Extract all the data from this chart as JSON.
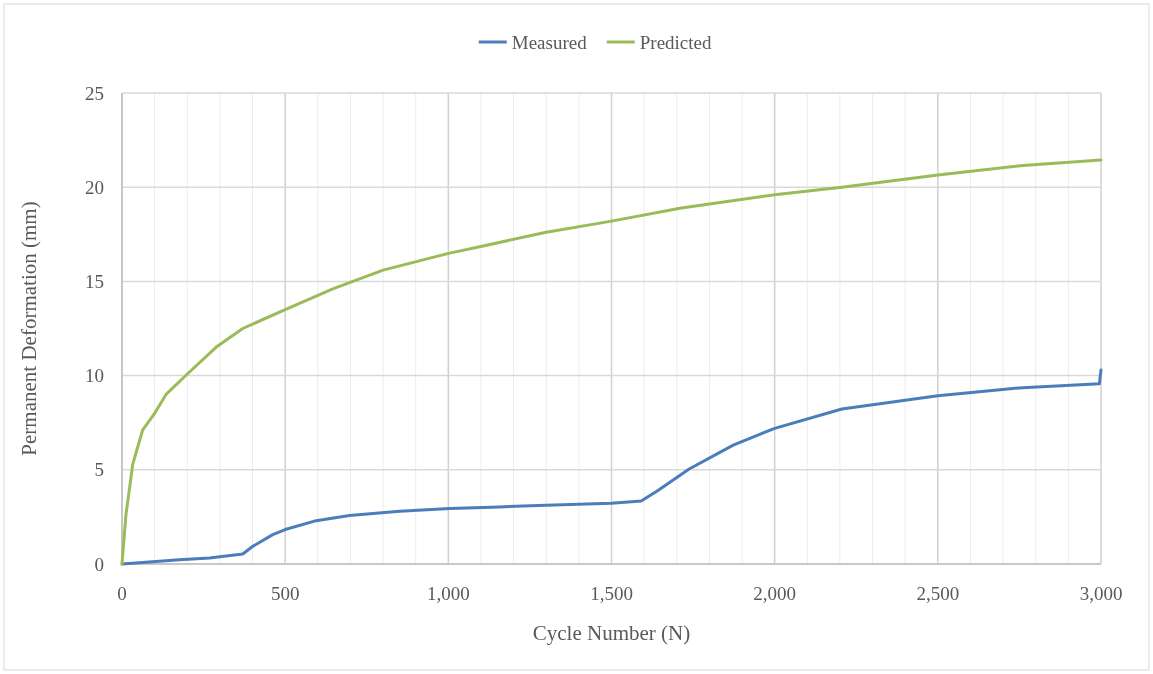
{
  "chart_data": {
    "type": "line",
    "xlabel": "Cycle Number (N)",
    "ylabel": "Permanent Deformation (mm)",
    "legend": "top",
    "grid": true,
    "marker": "none",
    "line_style": "solid",
    "xlim": [
      0,
      3000
    ],
    "ylim": [
      0,
      25
    ],
    "xticks": [
      0,
      {
        "value": 100,
        "label": null
      },
      {
        "value": 200,
        "label": null
      },
      {
        "value": 300,
        "label": null
      },
      {
        "value": 400,
        "label": null
      },
      {
        "value": 500,
        "label": "500"
      },
      {
        "value": 600,
        "label": null
      },
      {
        "value": 700,
        "label": null
      },
      {
        "value": 800,
        "label": null
      },
      {
        "value": 900,
        "label": null
      },
      {
        "value": 1000,
        "label": "1,000"
      },
      {
        "value": 1100,
        "label": null
      },
      {
        "value": 1200,
        "label": null
      },
      {
        "value": 1300,
        "label": null
      },
      {
        "value": 1400,
        "label": null
      },
      {
        "value": 1500,
        "label": "1,500"
      },
      {
        "value": 1600,
        "label": null
      },
      {
        "value": 1700,
        "label": null
      },
      {
        "value": 1800,
        "label": null
      },
      {
        "value": 1900,
        "label": null
      },
      {
        "value": 2000,
        "label": "2,000"
      },
      {
        "value": 2100,
        "label": null
      },
      {
        "value": 2200,
        "label": null
      },
      {
        "value": 2300,
        "label": null
      },
      {
        "value": 2400,
        "label": null
      },
      {
        "value": 2500,
        "label": "2,500"
      },
      {
        "value": 2600,
        "label": null
      },
      {
        "value": 2700,
        "label": null
      },
      {
        "value": 2800,
        "label": null
      },
      {
        "value": 2900,
        "label": null
      },
      {
        "value": 3000,
        "label": "3,000"
      }
    ],
    "yticks": [
      0,
      5,
      10,
      15,
      20,
      25
    ],
    "series": [
      {
        "name": "Measured",
        "color": "#4a7ebb",
        "x": [
          0,
          176,
          268,
          370,
          401,
          462,
          500,
          595,
          697,
          851,
          1004,
          1157,
          1300,
          1500,
          1591,
          1640,
          1738,
          1873,
          2000,
          2206,
          2500,
          2760,
          2995,
          3000
        ],
        "values": [
          0,
          0.23,
          0.32,
          0.53,
          0.94,
          1.56,
          1.83,
          2.3,
          2.57,
          2.8,
          2.94,
          3.03,
          3.12,
          3.22,
          3.34,
          3.87,
          5.04,
          6.31,
          7.2,
          8.23,
          8.93,
          9.36,
          9.57,
          10.3
        ]
      },
      {
        "name": "Predicted",
        "color": "#9bbb59",
        "x": [
          0,
          12,
          33,
          63,
          100,
          135,
          201,
          288,
          370,
          500,
          646,
          800,
          1004,
          1100,
          1296,
          1500,
          1714,
          2000,
          2206,
          2500,
          2760,
          3000
        ],
        "values": [
          0,
          2.6,
          5.3,
          7.1,
          8.0,
          9.0,
          10.1,
          11.5,
          12.5,
          13.5,
          14.6,
          15.6,
          16.5,
          16.85,
          17.6,
          18.2,
          18.9,
          19.6,
          20.0,
          20.65,
          21.15,
          21.45
        ]
      }
    ]
  }
}
